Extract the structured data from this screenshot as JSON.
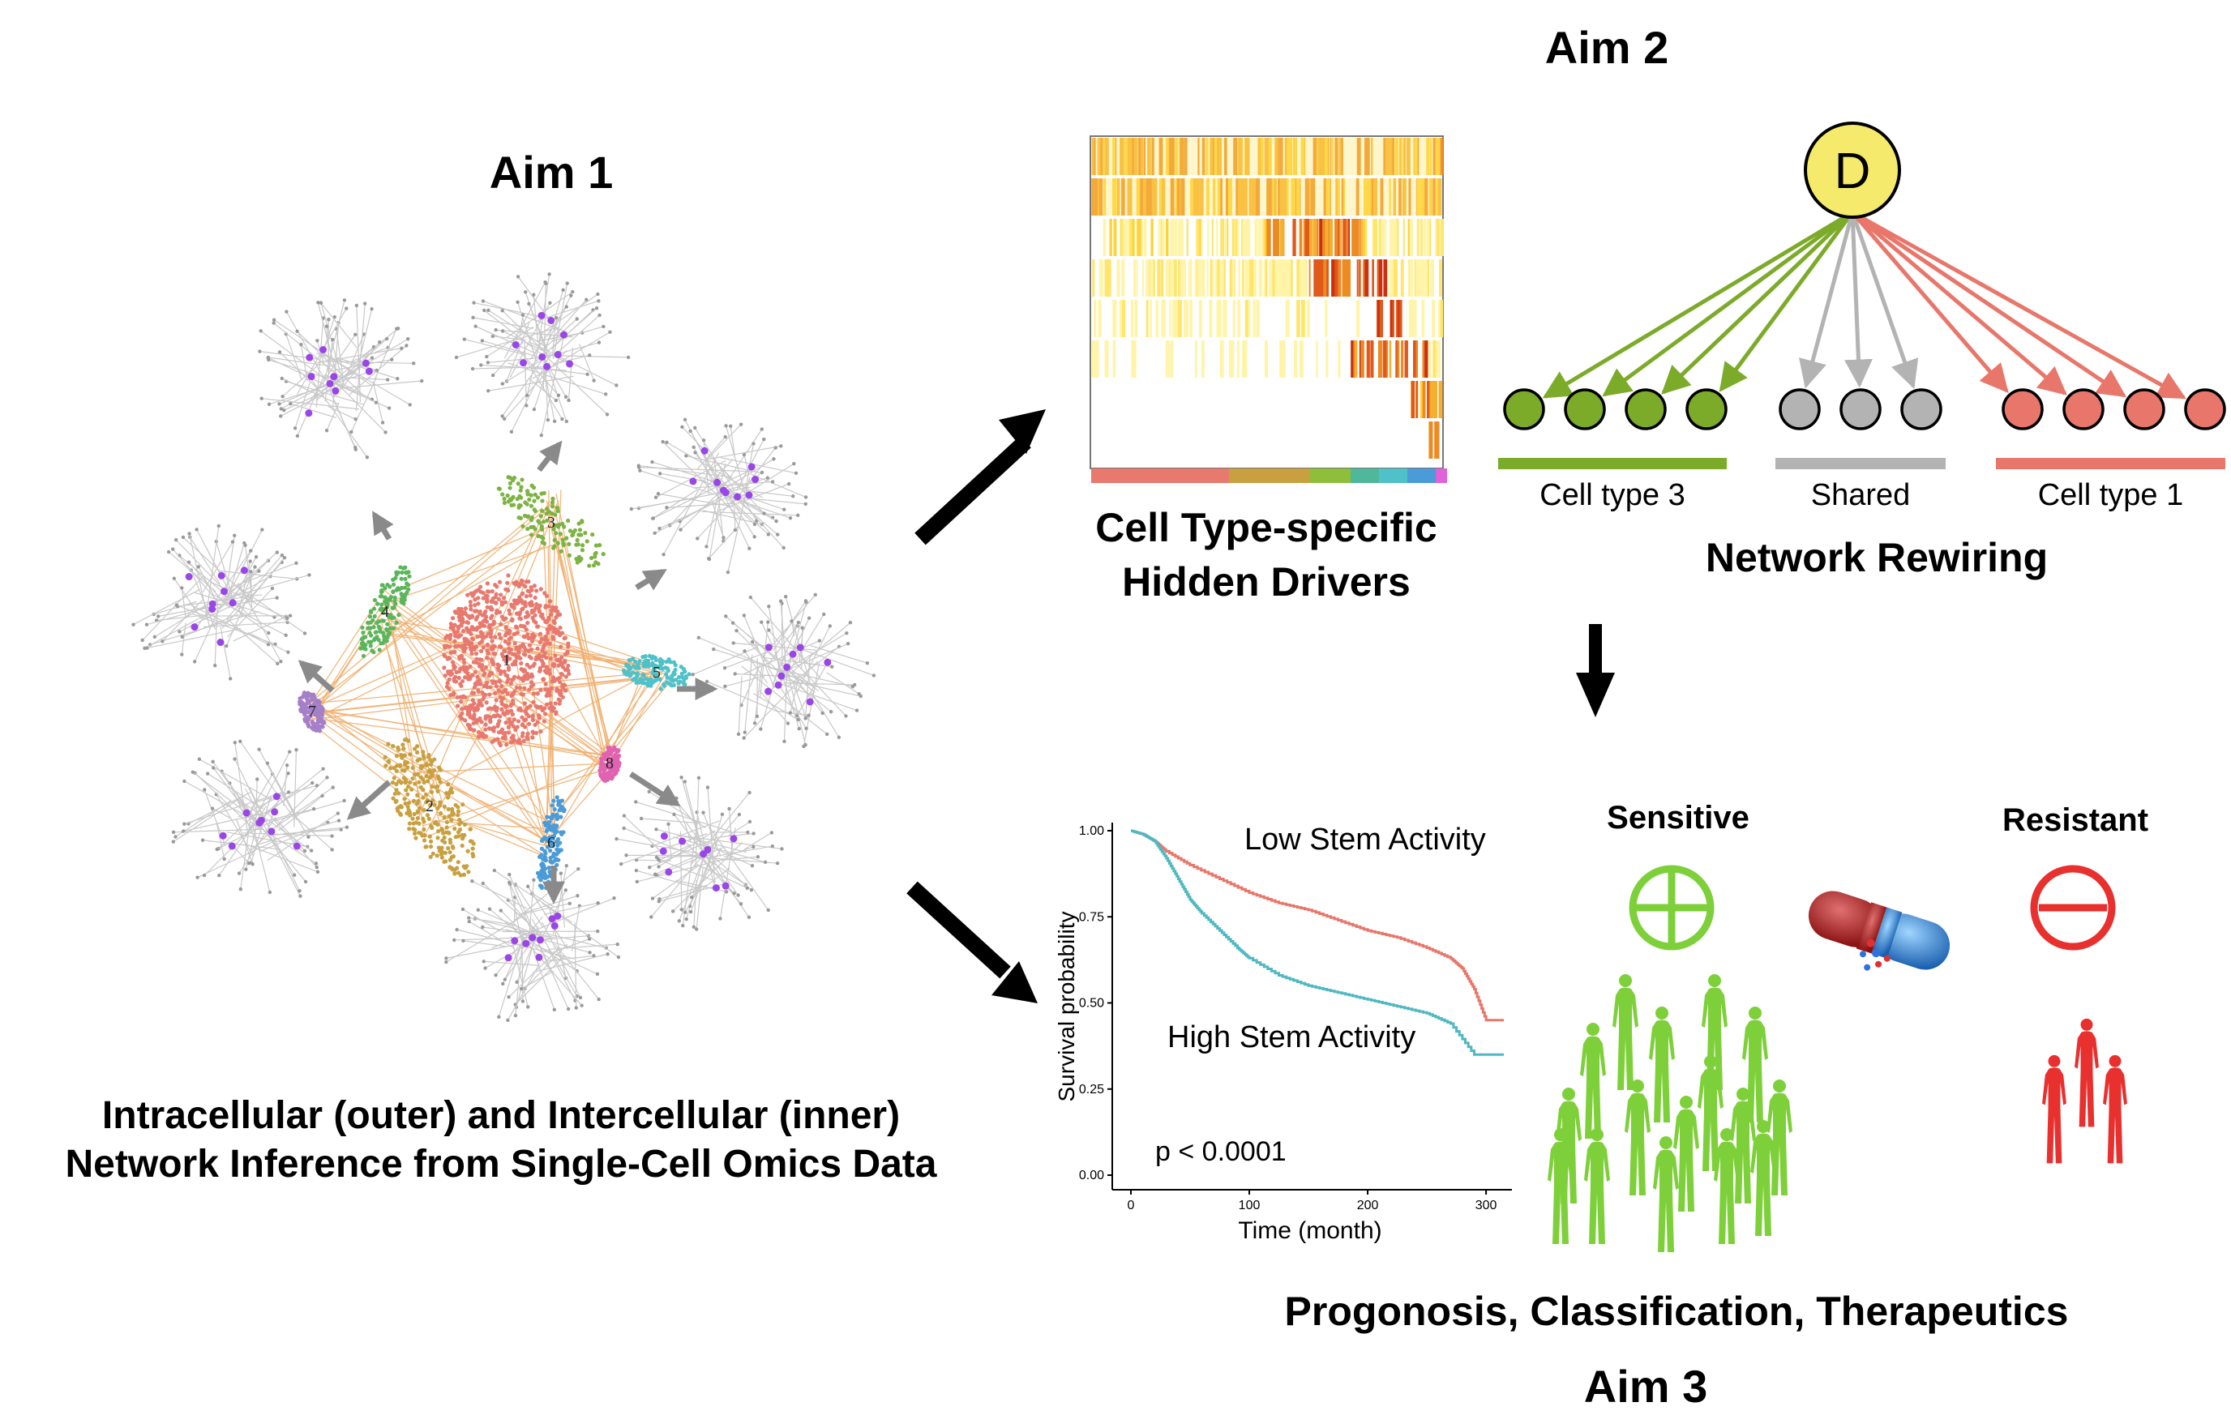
{
  "aims": {
    "aim1": "Aim 1",
    "aim2": "Aim 2",
    "aim3": "Aim 3"
  },
  "aim1_caption": {
    "line1": "Intracellular (outer) and Intercellular (inner)",
    "line2": "Network Inference from Single-Cell Omics Data"
  },
  "clusters": [
    {
      "label": "1",
      "color": "#e8796f"
    },
    {
      "label": "2",
      "color": "#c8a040"
    },
    {
      "label": "3",
      "color": "#7cb342"
    },
    {
      "label": "4",
      "color": "#5bb55b"
    },
    {
      "label": "5",
      "color": "#4fc1c9"
    },
    {
      "label": "6",
      "color": "#4a9bd8"
    },
    {
      "label": "7",
      "color": "#a57fc8"
    },
    {
      "label": "8",
      "color": "#e062b0"
    }
  ],
  "heatmap": {
    "caption_line1": "Cell Type-specific",
    "caption_line2": "Hidden Drivers",
    "colorbar": [
      "#e8796f",
      "#c8a040",
      "#8fbf3a",
      "#4fb89a",
      "#4fc1c9",
      "#4a9bd8",
      "#e062d8"
    ]
  },
  "rewiring": {
    "driver_label": "D",
    "groups": [
      {
        "label": "Cell type 3",
        "color": "#7cab2a",
        "node_fill": "#7cab2a",
        "count": 4
      },
      {
        "label": "Shared",
        "color": "#b3b3b3",
        "node_fill": "#b3b3b3",
        "count": 3
      },
      {
        "label": "Cell type 1",
        "color": "#e8766a",
        "node_fill": "#e8766a",
        "count": 4
      }
    ],
    "title": "Network Rewiring",
    "driver_color": "#f5ea6b"
  },
  "survival": {
    "ylabel": "Survival probability",
    "xlabel": "Time (month)",
    "pvalue": "p < 0.0001",
    "low_label": "Low Stem Activity",
    "high_label": "High Stem Activity",
    "yticks": [
      "1.00",
      "0.75",
      "0.50",
      "0.25",
      "0.00"
    ],
    "xticks": [
      "0",
      "100",
      "200",
      "300"
    ]
  },
  "chart_data": {
    "type": "line",
    "title": "",
    "xlabel": "Time (month)",
    "ylabel": "Survival probability",
    "xlim": [
      0,
      315
    ],
    "ylim": [
      0,
      1
    ],
    "series": [
      {
        "name": "Low Stem Activity",
        "color": "#e8766a",
        "x": [
          0,
          10,
          20,
          30,
          50,
          75,
          100,
          125,
          150,
          175,
          200,
          225,
          250,
          270,
          280,
          290,
          300,
          315
        ],
        "y": [
          1.0,
          0.99,
          0.97,
          0.94,
          0.9,
          0.86,
          0.82,
          0.79,
          0.77,
          0.74,
          0.71,
          0.69,
          0.66,
          0.63,
          0.6,
          0.54,
          0.45,
          0.45
        ]
      },
      {
        "name": "High Stem Activity",
        "color": "#4fb8c0",
        "x": [
          0,
          10,
          20,
          30,
          40,
          50,
          60,
          75,
          90,
          100,
          125,
          150,
          175,
          200,
          225,
          250,
          270,
          290,
          300,
          315
        ],
        "y": [
          1.0,
          0.99,
          0.97,
          0.92,
          0.86,
          0.8,
          0.76,
          0.71,
          0.66,
          0.63,
          0.58,
          0.55,
          0.53,
          0.51,
          0.49,
          0.47,
          0.44,
          0.35,
          0.35,
          0.35
        ]
      }
    ]
  },
  "therapeutics": {
    "sensitive": "Sensitive",
    "resistant": "Resistant",
    "caption": "Progonosis, Classification, Therapeutics",
    "sensitive_color": "#7ed03a",
    "resistant_color": "#e8302e"
  }
}
